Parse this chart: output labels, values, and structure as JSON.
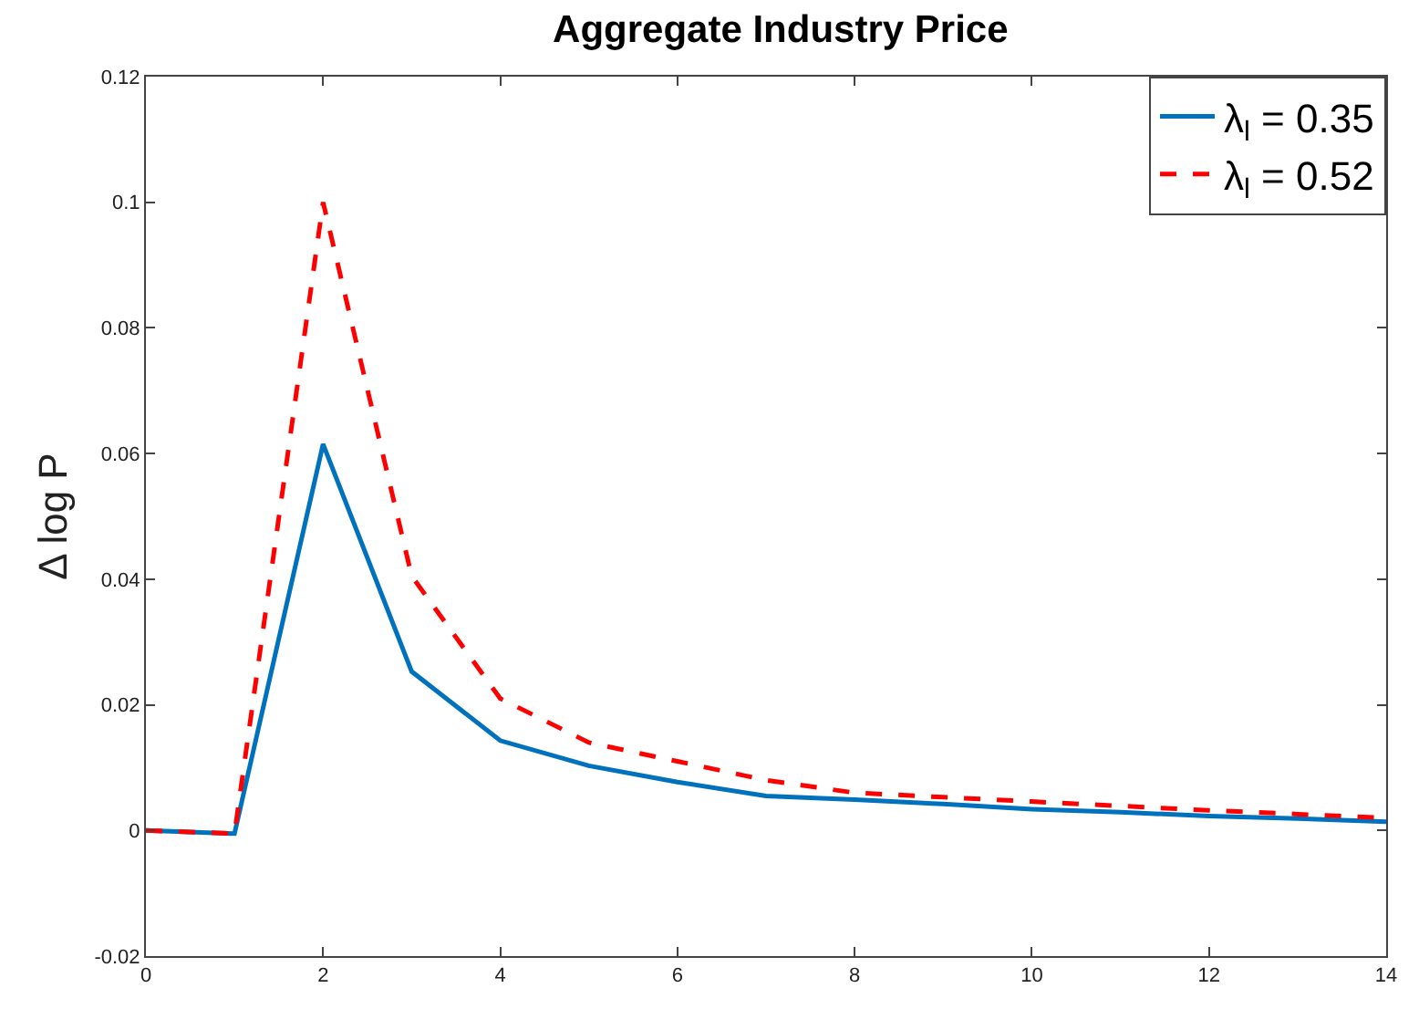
{
  "chart_data": {
    "type": "line",
    "title": "Aggregate Industry Price",
    "ylabel": "Δ log P",
    "x": [
      0,
      1,
      2,
      3,
      4,
      5,
      6,
      7,
      8,
      9,
      10,
      11,
      12,
      13,
      14
    ],
    "series": [
      {
        "name": "λ$_{l}$ = 0.35",
        "color": "#0072bd",
        "line_style": "solid",
        "values": [
          0,
          -0.0005,
          0.0615,
          0.0253,
          0.0143,
          0.0103,
          0.0077,
          0.0055,
          0.0049,
          0.0042,
          0.0034,
          0.0029,
          0.0023,
          0.0019,
          0.0014
        ]
      },
      {
        "name": "λ$_{l}$ = 0.52",
        "color": "#ff0000",
        "line_style": "dashed",
        "values": [
          0,
          -0.0005,
          0.1,
          0.0405,
          0.021,
          0.014,
          0.011,
          0.008,
          0.006,
          0.0053,
          0.0046,
          0.0039,
          0.0032,
          0.0026,
          0.002
        ]
      }
    ],
    "xlim": [
      0,
      14
    ],
    "xticks": [
      0,
      2,
      4,
      6,
      8,
      10,
      12,
      14
    ],
    "ylim": [
      -0.02,
      0.12
    ],
    "yticks": [
      -0.02,
      0,
      0.02,
      0.04,
      0.06,
      0.08,
      0.1,
      0.12
    ],
    "grid": false,
    "legend": "top right"
  }
}
